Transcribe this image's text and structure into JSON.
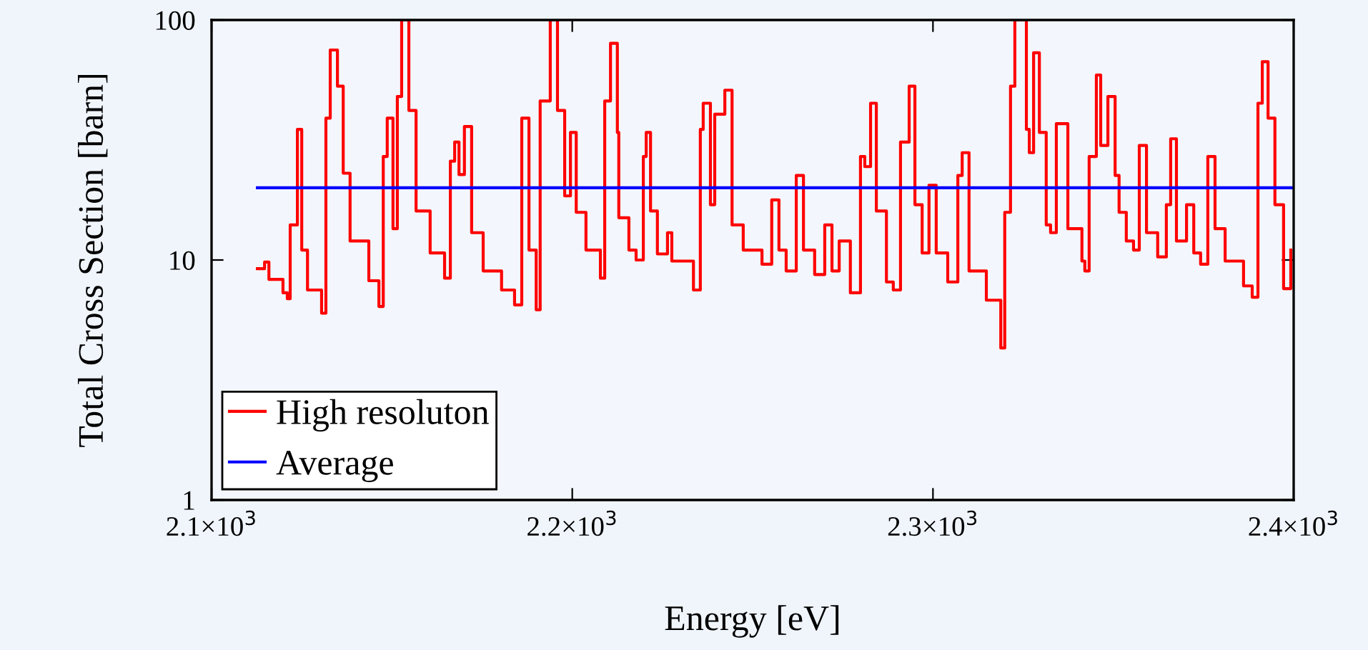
{
  "chart_data": {
    "type": "step",
    "xlabel": "Energy [eV]",
    "ylabel": "Total Cross Section [barn]",
    "log": "y",
    "xlim": [
      2100,
      2400
    ],
    "xticks": [
      {
        "value": 2100,
        "label": "2.1×10$^{3}$"
      },
      {
        "value": 2200,
        "label": "2.2×10$^{3}$"
      },
      {
        "value": 2300,
        "label": "2.3×10$^{3}$"
      },
      {
        "value": 2400,
        "label": "2.4×10$^{3}$"
      }
    ],
    "ylim": [
      1,
      100
    ],
    "yticks": [
      1,
      10,
      100
    ],
    "legend": "bottom left",
    "grid": false,
    "marker": "none",
    "line_style": "solid",
    "series": [
      {
        "name": "High resoluton",
        "color": "#ff0000",
        "x": [
          2112.7,
          2114.7,
          2115.9,
          2119.8,
          2121.0,
          2121.8,
          2123.8,
          2125.0,
          2126.6,
          2130.5,
          2131.7,
          2132.9,
          2134.9,
          2136.5,
          2138.4,
          2143.6,
          2146.4,
          2147.6,
          2148.7,
          2150.3,
          2151.5,
          2152.7,
          2154.7,
          2156.7,
          2160.6,
          2164.6,
          2166.2,
          2167.4,
          2168.6,
          2170.1,
          2172.1,
          2175.3,
          2180.4,
          2184.0,
          2186.0,
          2188.0,
          2190.0,
          2191.1,
          2193.9,
          2195.9,
          2197.9,
          2199.5,
          2201.1,
          2203.8,
          2207.8,
          2209.0,
          2210.6,
          2212.5,
          2212.9,
          2215.7,
          2217.7,
          2219.7,
          2220.5,
          2221.7,
          2223.6,
          2226.4,
          2227.6,
          2233.6,
          2235.5,
          2236.3,
          2238.3,
          2239.5,
          2242.3,
          2244.3,
          2247.4,
          2252.6,
          2255.3,
          2257.3,
          2259.3,
          2262.1,
          2264.1,
          2267.2,
          2270.0,
          2272.0,
          2274.0,
          2277.1,
          2279.9,
          2281.1,
          2282.7,
          2284.3,
          2287.1,
          2289.0,
          2291.0,
          2293.4,
          2295.0,
          2297.0,
          2298.9,
          2300.9,
          2304.1,
          2306.9,
          2308.1,
          2310.0,
          2314.8,
          2318.8,
          2319.9,
          2321.5,
          2322.7,
          2324.7,
          2325.9,
          2326.7,
          2327.9,
          2329.5,
          2331.4,
          2332.6,
          2334.2,
          2337.4,
          2341.3,
          2342.1,
          2343.3,
          2345.3,
          2346.5,
          2348.5,
          2350.5,
          2351.6,
          2353.6,
          2355.6,
          2357.2,
          2359.2,
          2362.3,
          2364.7,
          2365.9,
          2367.5,
          2370.3,
          2372.3,
          2374.2,
          2376.2,
          2378.2,
          2381.0,
          2386.1,
          2388.5,
          2390.1,
          2391.3,
          2392.9,
          2394.8,
          2397.2,
          2399.2
        ],
        "values": [
          9.2,
          9.8,
          8.3,
          7.3,
          6.9,
          14,
          35,
          11,
          7.5,
          6.0,
          39,
          75,
          53,
          23,
          12,
          8.2,
          6.4,
          27,
          39,
          13.5,
          48,
          100,
          42,
          16,
          10.7,
          8.4,
          25.8,
          31,
          22.7,
          36,
          13,
          9,
          7.5,
          6.5,
          39,
          11,
          6.2,
          46,
          100,
          42,
          18.5,
          34,
          15.8,
          11,
          8.4,
          46,
          80,
          34,
          15,
          11,
          10,
          27,
          34,
          16,
          10.6,
          13,
          9.9,
          7.5,
          35,
          45,
          17,
          40.5,
          51,
          14,
          11,
          9.6,
          17.8,
          11,
          9,
          22.5,
          11,
          8.7,
          14,
          9,
          12,
          7.3,
          27,
          24.5,
          45,
          16,
          8.1,
          7.5,
          31,
          53,
          17,
          10.7,
          20.5,
          10.7,
          8.1,
          22.5,
          28,
          9,
          6.8,
          4.3,
          15.8,
          53,
          100,
          100,
          35,
          28,
          73,
          34,
          14,
          13,
          37,
          13.5,
          9.9,
          9,
          27,
          59,
          30,
          48,
          22.5,
          15.8,
          12,
          11,
          30,
          13,
          10.3,
          17,
          32,
          12,
          17,
          10.7,
          9.6,
          27,
          13.5,
          9.9,
          7.8,
          7.0,
          45,
          67,
          39,
          17,
          7.6,
          11
        ]
      },
      {
        "name": "Average",
        "color": "#0000ff",
        "x": [
          2112.7,
          2400
        ],
        "values": [
          20,
          20
        ]
      }
    ]
  }
}
